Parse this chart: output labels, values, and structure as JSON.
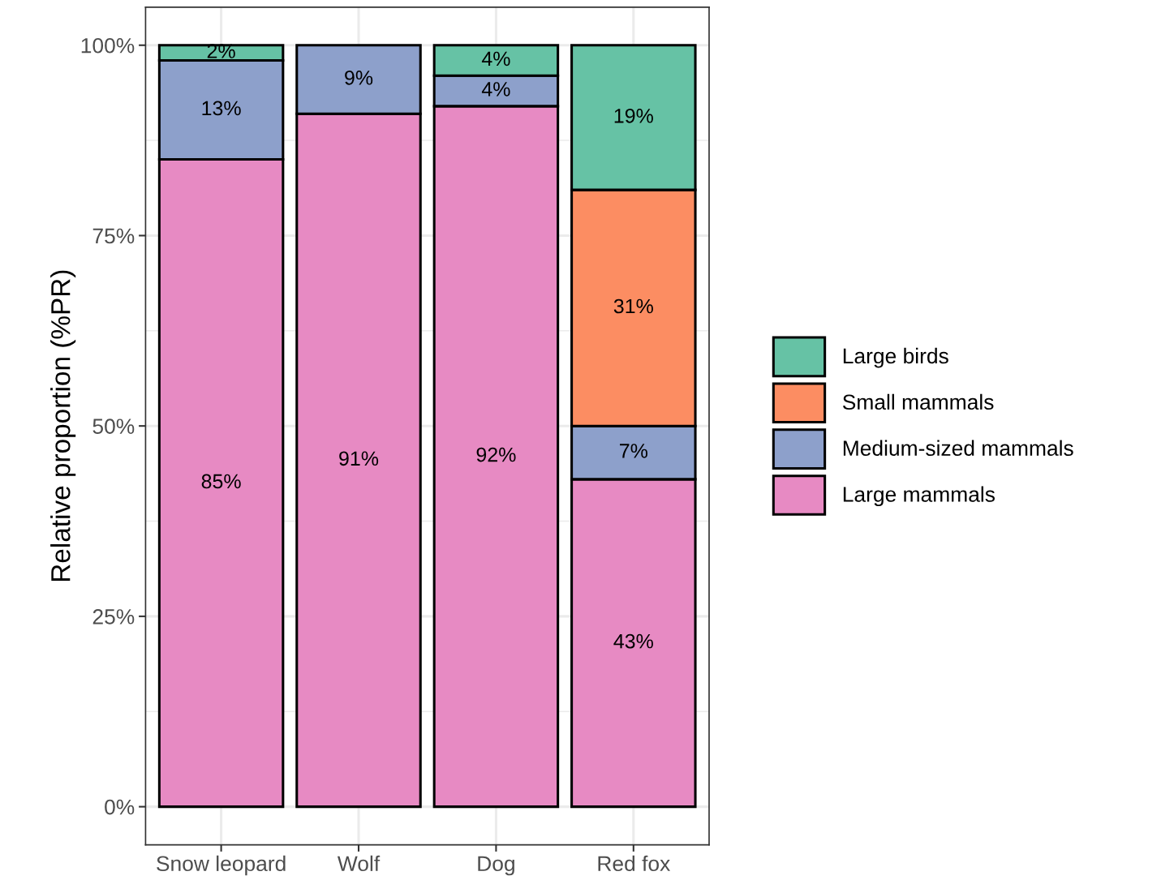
{
  "chart_data": {
    "type": "bar",
    "stacked": true,
    "ylabel": "Relative proportion (%PR)",
    "categories": [
      "Snow leopard",
      "Wolf",
      "Dog",
      "Red fox"
    ],
    "series": [
      {
        "name": "Large mammals",
        "color": "#e78ac3",
        "values": [
          85,
          91,
          92,
          43
        ],
        "value_labels": [
          "85%",
          "91%",
          "92%",
          "43%"
        ]
      },
      {
        "name": "Medium-sized mammals",
        "color": "#8da0cb",
        "values": [
          13,
          9,
          4,
          7
        ],
        "value_labels": [
          "13%",
          "9%",
          "4%",
          "7%"
        ]
      },
      {
        "name": "Small mammals",
        "color": "#fc8d62",
        "values": [
          null,
          null,
          null,
          31
        ],
        "value_labels": [
          null,
          null,
          null,
          "31%"
        ]
      },
      {
        "name": "Large birds",
        "color": "#66c2a5",
        "values": [
          2,
          null,
          4,
          19
        ],
        "value_labels": [
          "2%",
          null,
          "4%",
          "19%"
        ]
      }
    ],
    "ylim": [
      -5,
      105
    ],
    "yticks": [
      {
        "value": 0,
        "label": "0%"
      },
      {
        "value": 25,
        "label": "25%"
      },
      {
        "value": 50,
        "label": "50%"
      },
      {
        "value": 75,
        "label": "75%"
      },
      {
        "value": 100,
        "label": "100%"
      }
    ],
    "grid": true,
    "legend": "right"
  }
}
